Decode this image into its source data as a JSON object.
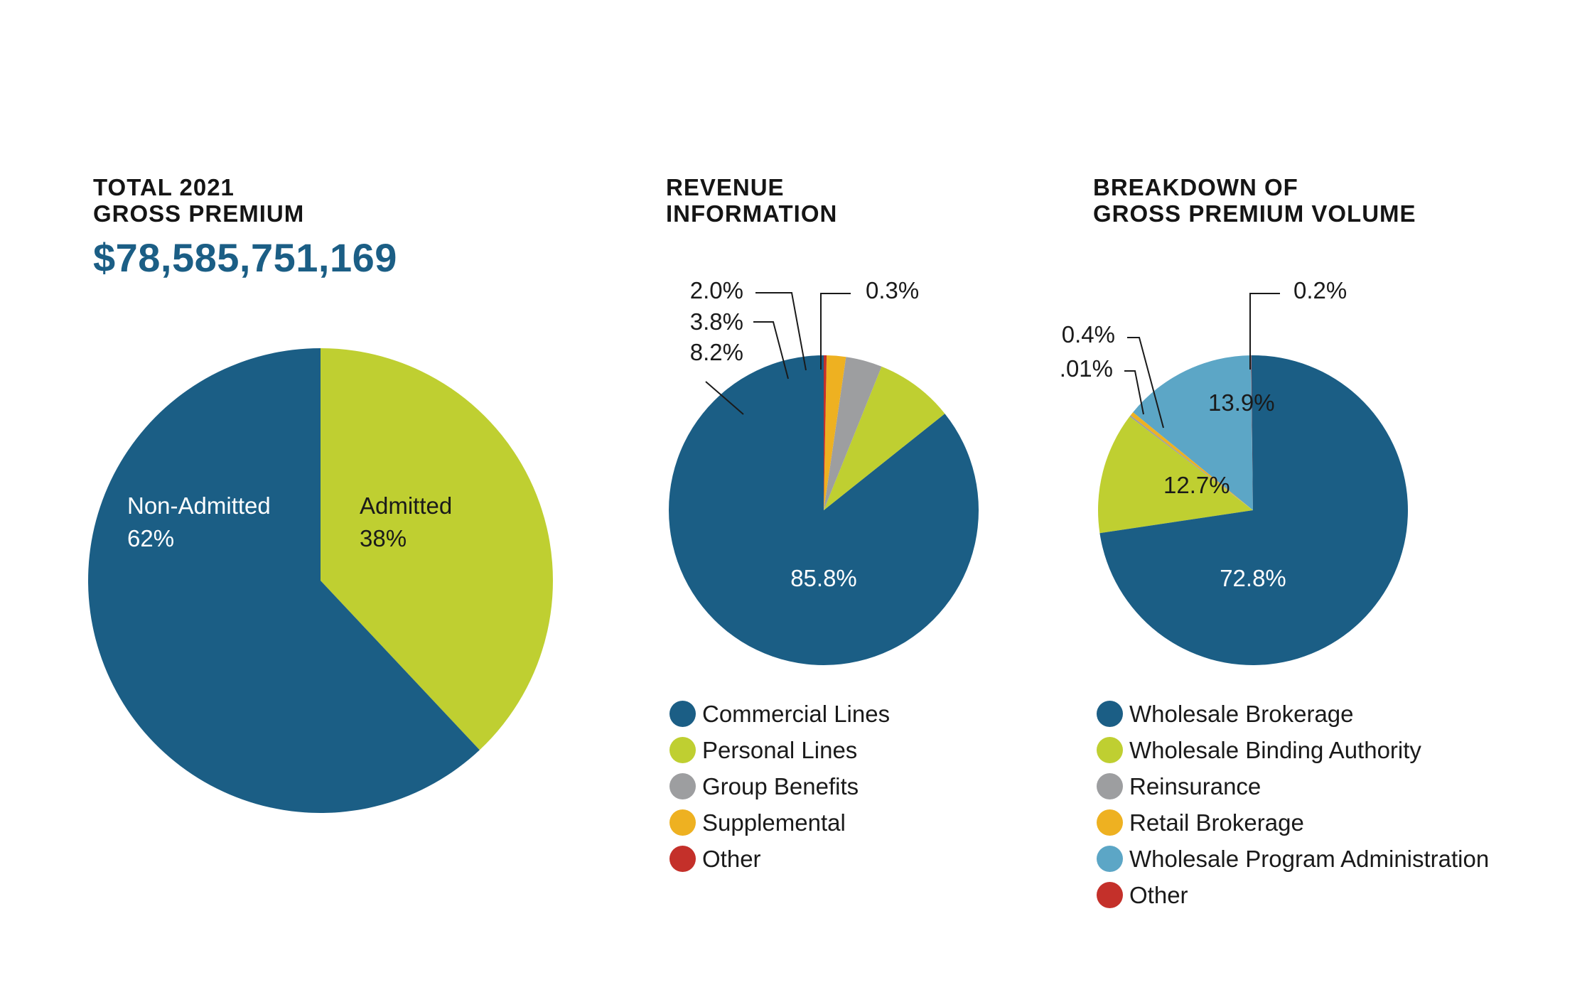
{
  "chart_data": [
    {
      "type": "pie",
      "title_lines": [
        "TOTAL 2021",
        "GROSS PREMIUM"
      ],
      "total": "$78,585,751,169",
      "categories": [
        "Non-Admitted",
        "Admitted"
      ],
      "values": [
        62,
        38
      ],
      "value_labels": [
        "62%",
        "38%"
      ],
      "colors": [
        "#1b5e85",
        "#bfcf31"
      ],
      "label_colors": [
        "#ffffff",
        "#1a1a1a"
      ]
    },
    {
      "type": "pie",
      "title_lines": [
        "REVENUE",
        "INFORMATION"
      ],
      "categories": [
        "Commercial Lines",
        "Personal Lines",
        "Group Benefits",
        "Supplemental",
        "Other"
      ],
      "values": [
        85.8,
        8.2,
        3.8,
        2.0,
        0.3
      ],
      "value_labels": [
        "85.8%",
        "8.2%",
        "3.8%",
        "2.0%",
        "0.3%"
      ],
      "colors": [
        "#1b5e85",
        "#bfcf31",
        "#9d9ea0",
        "#eeb121",
        "#c4302a"
      ]
    },
    {
      "type": "pie",
      "title_lines": [
        "BREAKDOWN OF",
        "GROSS PREMIUM VOLUME"
      ],
      "categories": [
        "Wholesale Brokerage",
        "Wholesale Binding Authority",
        "Reinsurance",
        "Retail Brokerage",
        "Wholesale Program Administration",
        "Other"
      ],
      "values": [
        72.8,
        12.7,
        0.01,
        0.4,
        13.9,
        0.2
      ],
      "value_labels": [
        "72.8%",
        "12.7%",
        ".01%",
        "0.4%",
        "13.9%",
        "0.2%"
      ],
      "colors": [
        "#1b5e85",
        "#bfcf31",
        "#9d9ea0",
        "#eeb121",
        "#5ca6c6",
        "#c4302a"
      ]
    }
  ]
}
